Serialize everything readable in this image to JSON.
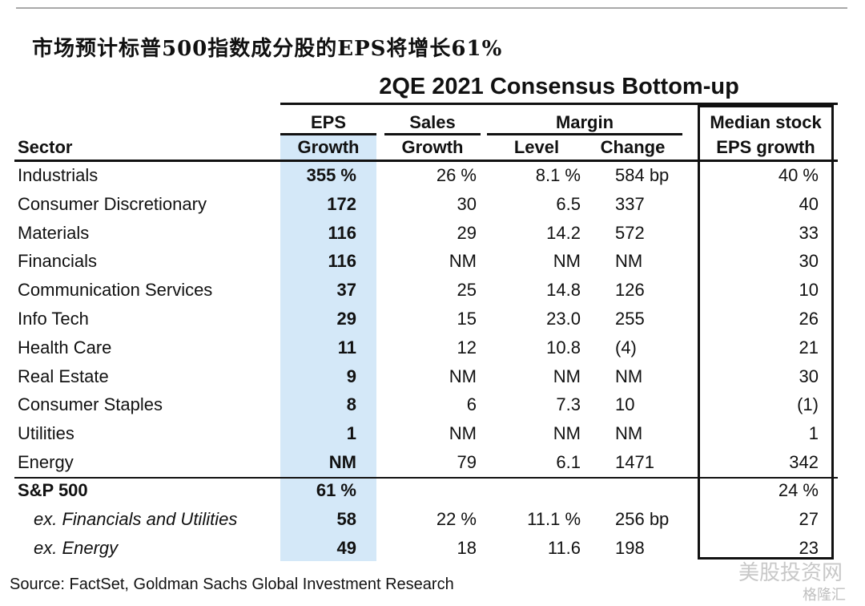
{
  "cn_title": "市场预计标普500指数成分股的EPS将增长61%",
  "chart_data": {
    "type": "table",
    "title": "2QE 2021 Consensus Bottom-up",
    "headers": {
      "sector": "Sector",
      "eps_top": "EPS",
      "eps_bottom": "Growth",
      "sales_top": "Sales",
      "sales_bottom": "Growth",
      "margin": "Margin",
      "level": "Level",
      "change": "Change",
      "median_top": "Median stock",
      "median_bottom": "EPS growth"
    },
    "rows": [
      {
        "sector": "Industrials",
        "eps": "355 %",
        "sales": "26 %",
        "level": "8.1 %",
        "change": "584 bp",
        "median": "40 %"
      },
      {
        "sector": "Consumer Discretionary",
        "eps": "172",
        "sales": "30",
        "level": "6.5",
        "change": "337",
        "median": "40"
      },
      {
        "sector": "Materials",
        "eps": "116",
        "sales": "29",
        "level": "14.2",
        "change": "572",
        "median": "33"
      },
      {
        "sector": "Financials",
        "eps": "116",
        "sales": "NM",
        "level": "NM",
        "change": "NM",
        "median": "30"
      },
      {
        "sector": "Communication Services",
        "eps": "37",
        "sales": "25",
        "level": "14.8",
        "change": "126",
        "median": "10"
      },
      {
        "sector": "Info Tech",
        "eps": "29",
        "sales": "15",
        "level": "23.0",
        "change": "255",
        "median": "26"
      },
      {
        "sector": "Health Care",
        "eps": "11",
        "sales": "12",
        "level": "10.8",
        "change": "  (4)",
        "median": "21"
      },
      {
        "sector": "Real Estate",
        "eps": "9",
        "sales": "NM",
        "level": "NM",
        "change": "NM",
        "median": "30"
      },
      {
        "sector": "Consumer Staples",
        "eps": "8",
        "sales": "6",
        "level": "7.3",
        "change": " 10",
        "median": "(1)"
      },
      {
        "sector": "Utilities",
        "eps": "1",
        "sales": "NM",
        "level": "NM",
        "change": "NM",
        "median": "1"
      },
      {
        "sector": "Energy",
        "eps": "NM",
        "sales": "79",
        "level": "6.1",
        "change": "1471",
        "median": "342"
      }
    ],
    "summary_rows": [
      {
        "sector": "S&P 500",
        "eps": "61 %",
        "sales": "",
        "level": "",
        "change": "",
        "median": "24 %",
        "style": "bold"
      },
      {
        "sector": "ex. Financials and Utilities",
        "eps": "58",
        "sales": "22 %",
        "level": "11.1 %",
        "change": "256 bp",
        "median": "27",
        "style": "italic"
      },
      {
        "sector": "ex. Energy",
        "eps": "49",
        "sales": "18",
        "level": "11.6",
        "change": "198",
        "median": "23",
        "style": "italic"
      }
    ]
  },
  "source": "Source: FactSet, Goldman Sachs Global Investment Research",
  "watermark": "美股投资网",
  "watermark_brand": "格隆汇",
  "colors": {
    "eps_highlight": "#d4e8f8",
    "rule": "#111111"
  }
}
